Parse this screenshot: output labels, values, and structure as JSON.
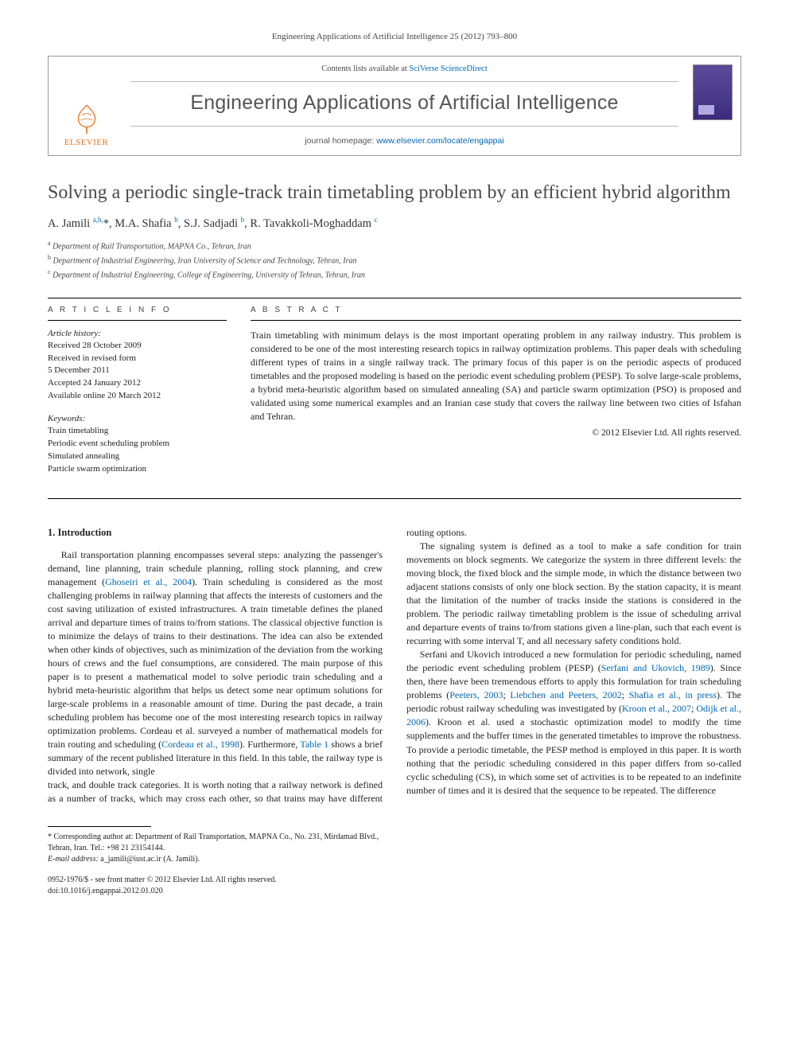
{
  "journal_ref": "Engineering Applications of Artificial Intelligence 25 (2012) 793–800",
  "masthead": {
    "contents_prefix": "Contents lists available at ",
    "contents_link": "SciVerse ScienceDirect",
    "journal_name": "Engineering Applications of Artificial Intelligence",
    "homepage_prefix": "journal homepage: ",
    "homepage_url": "www.elsevier.com/locate/engappai",
    "publisher": "ELSEVIER"
  },
  "title": "Solving a periodic single-track train timetabling problem by an efficient hybrid algorithm",
  "authors_html": "A. Jamili <sup>a,b,</sup><span class='star'>*</span>, M.A. Shafia <sup>b</sup>, S.J. Sadjadi <sup>b</sup>, R. Tavakkoli-Moghaddam <sup>c</sup>",
  "affiliations": {
    "a": "Department of Rail Transportation, MAPNA Co., Tehran, Iran",
    "b": "Department of Industrial Engineering, Iran University of Science and Technology, Tehran, Iran",
    "c": "Department of Industrial Engineering, College of Engineering, University of Tehran, Tehran, Iran"
  },
  "info": {
    "label": "A R T I C L E   I N F O",
    "history_head": "Article history:",
    "history": [
      "Received 28 October 2009",
      "Received in revised form",
      "5 December 2011",
      "Accepted 24 January 2012",
      "Available online 20 March 2012"
    ],
    "kw_head": "Keywords:",
    "keywords": [
      "Train timetabling",
      "Periodic event scheduling problem",
      "Simulated annealing",
      "Particle swarm optimization"
    ]
  },
  "abstract": {
    "label": "A B S T R A C T",
    "text": "Train timetabling with minimum delays is the most important operating problem in any railway industry. This problem is considered to be one of the most interesting research topics in railway optimization problems. This paper deals with scheduling different types of trains in a single railway track. The primary focus of this paper is on the periodic aspects of produced timetables and the proposed modeling is based on the periodic event scheduling problem (PESP). To solve large-scale problems, a hybrid meta-heuristic algorithm based on simulated annealing (SA) and particle swarm optimization (PSO) is proposed and validated using some numerical examples and an Iranian case study that covers the railway line between two cities of Isfahan and Tehran.",
    "copyright": "© 2012 Elsevier Ltd. All rights reserved."
  },
  "body": {
    "heading": "1.  Introduction",
    "p1": "Rail transportation planning encompasses several steps: analyzing the passenger's demand, line planning, train schedule planning, rolling stock planning, and crew management (Ghoseiri et al., 2004). Train scheduling is considered as the most challenging problems in railway planning that affects the interests of customers and the cost saving utilization of existed infrastructures. A train timetable defines the planed arrival and departure times of trains to/from stations. The classical objective function is to minimize the delays of trains to their destinations. The idea can also be extended when other kinds of objectives, such as minimization of the deviation from the working hours of crews and the fuel consumptions, are considered. The main purpose of this paper is to present a mathematical model to solve periodic train scheduling and a hybrid meta-heuristic algorithm that helps us detect some near optimum solutions for large-scale problems in a reasonable amount of time. During the past decade, a train scheduling problem has become one of the most interesting research topics in railway optimization problems. Cordeau et al. surveyed a number of mathematical models for train routing and scheduling (Cordeau et al., 1998). Furthermore, Table 1 shows a brief summary of the recent published literature in this field. In this table, the railway type is divided into network, single",
    "p2": "track, and double track categories. It is worth noting that a railway network is defined as a number of tracks, which may cross each other, so that trains may have different routing options.",
    "p3": "The signaling system is defined as a tool to make a safe condition for train movements on block segments. We categorize the system in three different levels: the moving block, the fixed block and the simple mode, in which the distance between two adjacent stations consists of only one block section. By the station capacity, it is meant that the limitation of the number of tracks inside the stations is considered in the problem. The periodic railway timetabling problem is the issue of scheduling arrival and departure events of trains to/from stations given a line-plan, such that each event is recurring with some interval T, and all necessary safety conditions hold.",
    "p4": "Serfani and Ukovich introduced a new formulation for periodic scheduling, named the periodic event scheduling problem (PESP) (Serfani and Ukovich, 1989). Since then, there have been tremendous efforts to apply this formulation for train scheduling problems (Peeters, 2003; Liebchen and Peeters, 2002; Shafia et al., in press). The periodic robust railway scheduling was investigated by (Kroon et al., 2007; Odijk et al., 2006). Kroon et al. used a stochastic optimization model to modify the time supplements and the buffer times in the generated timetables to improve the robustness. To provide a periodic timetable, the PESP method is employed in this paper. It is worth nothing that the periodic scheduling considered in this paper differs from so-called cyclic scheduling (CS), in which some set of activities is to be repeated to an indefinite number of times and it is desired that the sequence to be repeated. The difference"
  },
  "footnote": {
    "corr": "* Corresponding author at: Department of Rail Transportation, MAPNA Co., No. 231, Mirdamad Blvd., Tehran, Iran. Tel.: +98 21 23154144.",
    "email_label": "E-mail address:",
    "email": "a_jamili@iust.ac.ir (A. Jamili)."
  },
  "front_matter": {
    "issn": "0952-1976/$ - see front matter © 2012 Elsevier Ltd. All rights reserved.",
    "doi": "doi:10.1016/j.engappai.2012.01.020"
  },
  "colors": {
    "link": "#0066b3",
    "brand": "#e9711c",
    "text": "#222222",
    "rule": "#000000"
  }
}
